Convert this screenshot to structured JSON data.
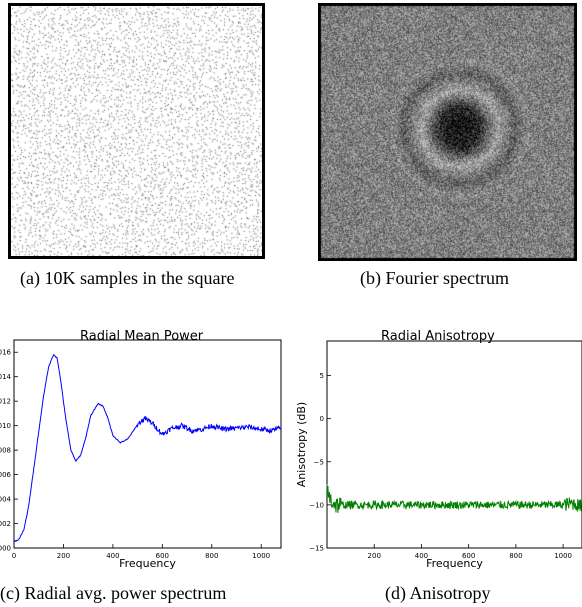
{
  "figure": {
    "panels": [
      {
        "caption": "(a)  10K samples in the square",
        "content": "point-samples"
      },
      {
        "caption": "(b)  Fourier spectrum",
        "content": "fourier-image"
      },
      {
        "caption": "(c)  Radial avg. power spectrum",
        "content": "chart"
      },
      {
        "caption": "(d)  Anisotropy",
        "content": "chart"
      }
    ]
  },
  "chart_data": [
    {
      "type": "line",
      "title": "Radial Mean Power",
      "xlabel": "Frequency",
      "ylabel": "",
      "xlim": [
        0,
        1080
      ],
      "ylim": [
        0,
        0.017
      ],
      "xticks": [
        "0",
        "200",
        "400",
        "600",
        "800",
        "1000"
      ],
      "yticks": [
        ".000",
        ".002",
        ".004",
        ".006",
        ".008",
        ".010",
        ".012",
        ".014",
        ".016"
      ],
      "series": [
        {
          "color": "#0000ff",
          "x": [
            0,
            20,
            40,
            60,
            80,
            100,
            120,
            140,
            160,
            175,
            190,
            210,
            230,
            250,
            270,
            290,
            310,
            340,
            360,
            380,
            400,
            430,
            460,
            500,
            530,
            560,
            600,
            640,
            680,
            720,
            760,
            800,
            850,
            900,
            950,
            1000,
            1040,
            1080
          ],
          "y": [
            0.0005,
            0.0007,
            0.0015,
            0.0035,
            0.0065,
            0.0095,
            0.0125,
            0.0148,
            0.0158,
            0.0155,
            0.0135,
            0.0105,
            0.008,
            0.0071,
            0.0076,
            0.009,
            0.0108,
            0.0118,
            0.0116,
            0.0106,
            0.0092,
            0.0086,
            0.0089,
            0.0101,
            0.0106,
            0.0102,
            0.0093,
            0.0098,
            0.01,
            0.0096,
            0.0097,
            0.01,
            0.0097,
            0.0098,
            0.0099,
            0.0097,
            0.0096,
            0.0098
          ]
        }
      ]
    },
    {
      "type": "line",
      "title": "Radial Anisotropy",
      "xlabel": "Frequency",
      "ylabel": "Anisotropy (dB)",
      "xlim": [
        0,
        1080
      ],
      "ylim": [
        -15,
        9
      ],
      "xticks": [
        "200",
        "400",
        "600",
        "800",
        "1000"
      ],
      "yticks": [
        "−15",
        "−10",
        "−5",
        "0",
        "5"
      ],
      "series": [
        {
          "color": "#007f00",
          "x": [
            0,
            20,
            40,
            80,
            200,
            400,
            600,
            800,
            1000,
            1040,
            1080
          ],
          "y": [
            -8.5,
            -9.6,
            -10.0,
            -10.0,
            -10.0,
            -10.0,
            -10.0,
            -10.0,
            -10.0,
            -9.8,
            -10.2
          ]
        }
      ]
    }
  ]
}
